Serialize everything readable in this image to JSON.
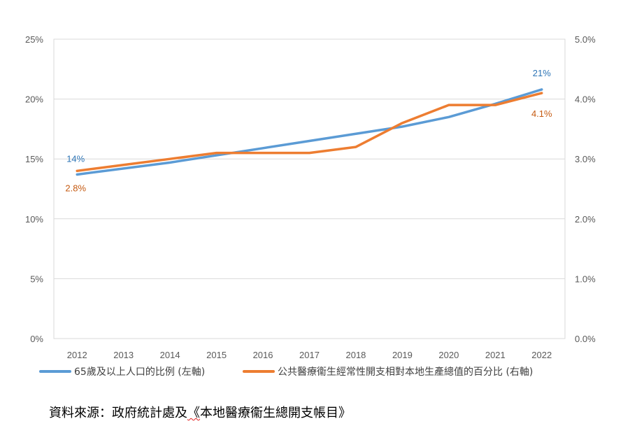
{
  "chart_data": {
    "type": "line",
    "title": "",
    "categories": [
      "2012",
      "2013",
      "2014",
      "2015",
      "2016",
      "2017",
      "2018",
      "2019",
      "2020",
      "2021",
      "2022"
    ],
    "left_axis": {
      "ticks": [
        "0%",
        "5%",
        "10%",
        "15%",
        "20%",
        "25%"
      ],
      "ylim": [
        0,
        25
      ]
    },
    "right_axis": {
      "ticks": [
        "0.0%",
        "1.0%",
        "2.0%",
        "3.0%",
        "4.0%",
        "5.0%"
      ],
      "ylim": [
        0,
        5
      ]
    },
    "grid": true,
    "legend_position": "bottom",
    "series": [
      {
        "name": "65歲及以上人口的比例 (左軸)",
        "axis": "left",
        "color": "#5B9BD5",
        "values": [
          13.7,
          14.2,
          14.7,
          15.3,
          15.9,
          16.5,
          17.1,
          17.7,
          18.5,
          19.6,
          20.8
        ],
        "labels": [
          {
            "index": 0,
            "text": "14%"
          },
          {
            "index": 10,
            "text": "21%"
          }
        ]
      },
      {
        "name": "公共醫療衞生經常性開支相對本地生產總值的百分比 (右軸)",
        "axis": "right",
        "color": "#ED7D31",
        "values": [
          2.8,
          2.9,
          3.0,
          3.1,
          3.1,
          3.1,
          3.2,
          3.6,
          3.9,
          3.9,
          4.1
        ],
        "labels": [
          {
            "index": 0,
            "text": "2.8%"
          },
          {
            "index": 10,
            "text": "4.1%"
          }
        ]
      }
    ]
  },
  "source": {
    "prefix": "資料來源：政府統計處及",
    "marked": "《",
    "rest": "本地醫療衞生總開支帳目》"
  }
}
